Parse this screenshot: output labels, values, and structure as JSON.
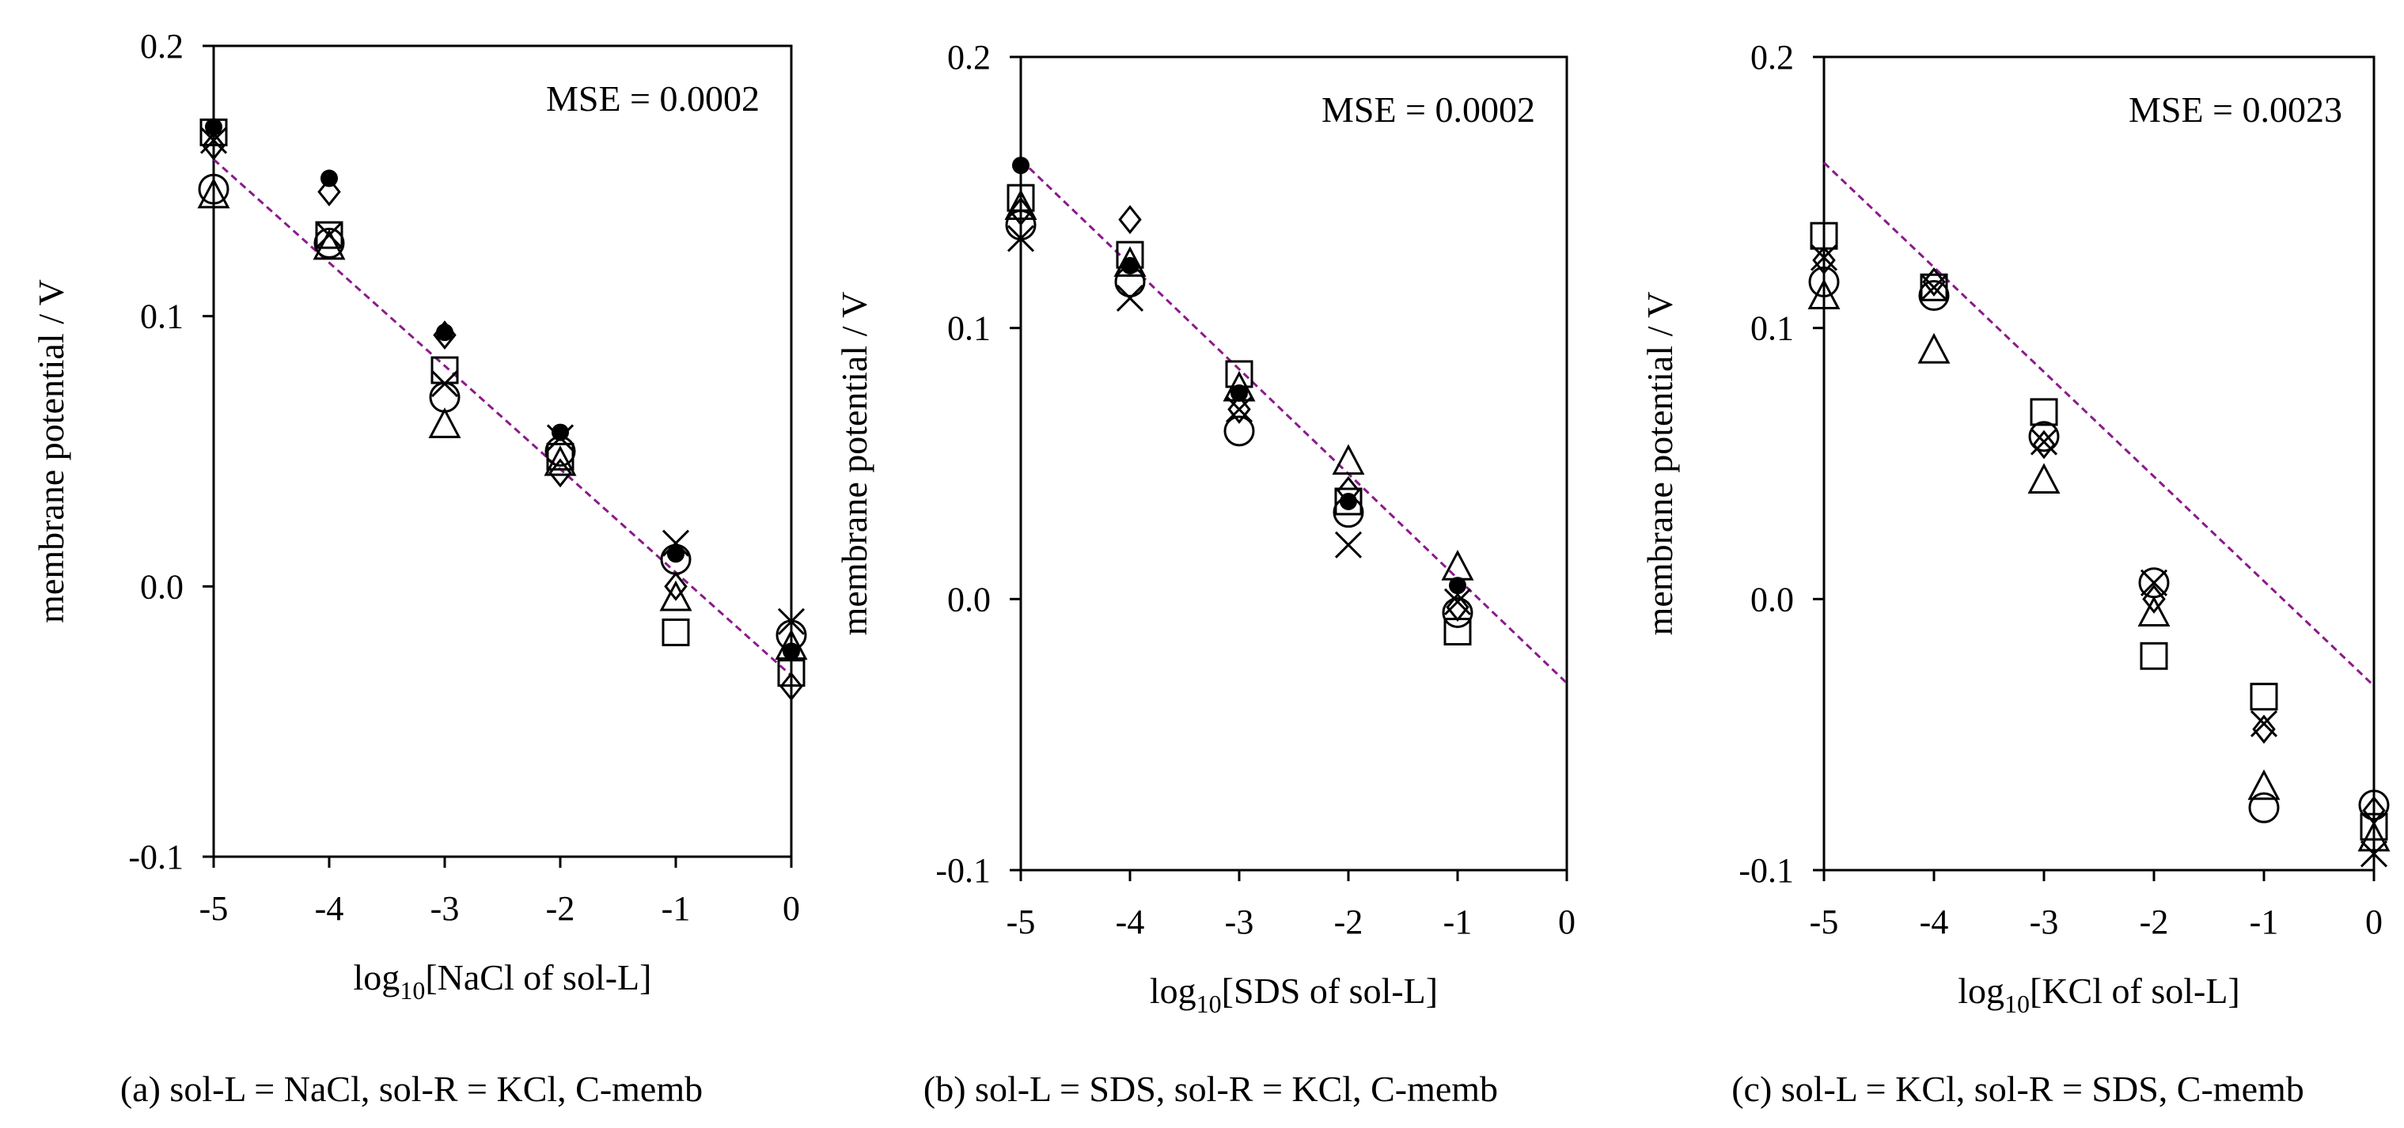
{
  "chart_data": [
    {
      "type": "scatter",
      "panel": "a",
      "caption": "(a) sol-L = NaCl, sol-R = KCl, C-memb",
      "xlabel_base": "log",
      "xlabel_sub": "10",
      "xlabel_rest": "[NaCl of sol-L]",
      "ylabel": "membrane potential / V",
      "annotation": "MSE = 0.0002",
      "xlim": [
        -5,
        0
      ],
      "ylim": [
        -0.1,
        0.2
      ],
      "xticks": [
        "-5",
        "-4",
        "-3",
        "-2",
        "-1",
        "0"
      ],
      "yticks": [
        "-0.1",
        "0.0",
        "0.1",
        "0.2"
      ],
      "fit_line": {
        "x": [
          -5,
          0
        ],
        "y": [
          0.158,
          -0.033
        ]
      },
      "x": [
        -5,
        -4,
        -3,
        -2,
        -1,
        0
      ],
      "series": [
        {
          "marker": "circle",
          "values": [
            0.147,
            0.127,
            0.07,
            0.05,
            0.01,
            -0.018
          ]
        },
        {
          "marker": "square",
          "values": [
            0.168,
            0.13,
            0.08,
            0.048,
            -0.017,
            -0.032
          ]
        },
        {
          "marker": "triangle",
          "values": [
            0.145,
            0.126,
            0.06,
            0.046,
            -0.004,
            -0.022
          ]
        },
        {
          "marker": "diamond",
          "values": [
            0.163,
            0.146,
            0.093,
            0.042,
            0.0,
            -0.037
          ]
        },
        {
          "marker": "cross",
          "values": [
            0.165,
            0.13,
            0.075,
            0.055,
            0.016,
            -0.013
          ]
        },
        {
          "marker": "dot",
          "values": [
            0.17,
            0.151,
            0.094,
            0.057,
            0.012,
            -0.024
          ]
        }
      ]
    },
    {
      "type": "scatter",
      "panel": "b",
      "caption": "(b) sol-L = SDS, sol-R = KCl, C-memb",
      "xlabel_base": "log",
      "xlabel_sub": "10",
      "xlabel_rest": "[SDS of sol-L]",
      "ylabel": "membrane potential / V",
      "annotation": "MSE = 0.0002",
      "xlim": [
        -5,
        0
      ],
      "ylim": [
        -0.1,
        0.2
      ],
      "xticks": [
        "-5",
        "-4",
        "-3",
        "-2",
        "-1",
        "0"
      ],
      "yticks": [
        "-0.1",
        "0.0",
        "0.1",
        "0.2"
      ],
      "fit_line": {
        "x": [
          -5,
          0
        ],
        "y": [
          0.162,
          -0.031
        ]
      },
      "x": [
        -5,
        -4,
        -3,
        -2,
        -1
      ],
      "series": [
        {
          "marker": "circle",
          "values": [
            0.138,
            0.117,
            0.062,
            0.032,
            -0.005
          ]
        },
        {
          "marker": "square",
          "values": [
            0.148,
            0.127,
            0.083,
            0.036,
            -0.012
          ]
        },
        {
          "marker": "triangle",
          "values": [
            0.145,
            0.124,
            0.078,
            0.051,
            0.012
          ]
        },
        {
          "marker": "diamond",
          "values": [
            0.143,
            0.14,
            0.07,
            0.04,
            -0.003
          ]
        },
        {
          "marker": "cross",
          "values": [
            0.133,
            0.111,
            0.07,
            0.02,
            -0.001
          ]
        },
        {
          "marker": "dot",
          "values": [
            0.16,
            0.123,
            0.076,
            0.036,
            0.005
          ]
        }
      ]
    },
    {
      "type": "scatter",
      "panel": "c",
      "caption": "(c) sol-L = KCl, sol-R = SDS, C-memb",
      "xlabel_base": "log",
      "xlabel_sub": "10",
      "xlabel_rest": "[KCl of sol-L]",
      "ylabel": "membrane potential / V",
      "annotation": "MSE = 0.0023",
      "xlim": [
        -5,
        0
      ],
      "ylim": [
        -0.1,
        0.2
      ],
      "xticks": [
        "-5",
        "-4",
        "-3",
        "-2",
        "-1",
        "0"
      ],
      "yticks": [
        "-0.1",
        "0.0",
        "0.1",
        "0.2"
      ],
      "fit_line": {
        "x": [
          -5,
          0
        ],
        "y": [
          0.161,
          -0.032
        ]
      },
      "x": [
        -5,
        -4,
        -3,
        -2,
        -1,
        0
      ],
      "series": [
        {
          "marker": "circle",
          "values": [
            0.117,
            0.112,
            0.06,
            0.006,
            -0.077,
            -0.076
          ]
        },
        {
          "marker": "square",
          "values": [
            0.134,
            0.115,
            0.069,
            -0.021,
            -0.036,
            -0.084
          ]
        },
        {
          "marker": "triangle",
          "values": [
            0.112,
            0.092,
            0.044,
            -0.005,
            -0.069,
            -0.088
          ]
        },
        {
          "marker": "diamond",
          "values": [
            0.125,
            0.117,
            0.057,
            0.0,
            -0.048,
            -0.078
          ]
        },
        {
          "marker": "cross",
          "values": [
            0.126,
            0.115,
            0.058,
            0.006,
            -0.046,
            -0.094
          ]
        }
      ]
    }
  ],
  "style": {
    "fit_line_color": "#8B1A8B",
    "marker_color": "#000000",
    "axis_color": "#000000"
  }
}
